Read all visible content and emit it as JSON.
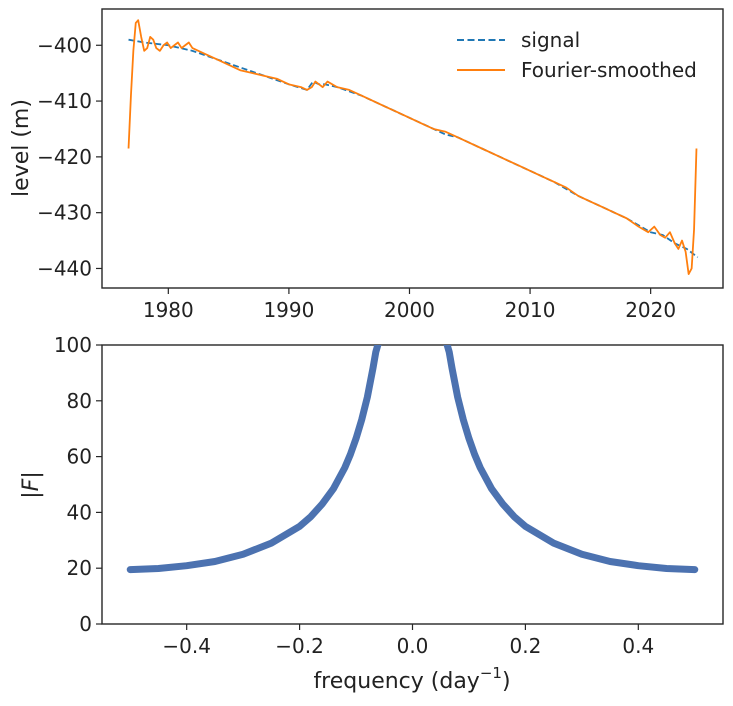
{
  "chart_data": [
    {
      "type": "line",
      "xlabel": "",
      "ylabel": "level (m)",
      "xlim": [
        1974.5,
        2026.0
      ],
      "ylim": [
        -443.5,
        -393.5
      ],
      "xticks": [
        1980,
        1990,
        2000,
        2010,
        2020
      ],
      "xtick_labels": [
        "1980",
        "1990",
        "2000",
        "2010",
        "2020"
      ],
      "yticks": [
        -400,
        -410,
        -420,
        -430,
        -440
      ],
      "ytick_labels": [
        "−400",
        "−410",
        "−420",
        "−430",
        "−440"
      ],
      "legend": "top-right",
      "grid": false,
      "series": [
        {
          "name": "signal",
          "style": "dashed",
          "color": "#1f77b4",
          "x": [
            1976.7,
            1978.0,
            1980.0,
            1982.0,
            1984.0,
            1986.0,
            1988.0,
            1990.0,
            1991.5,
            1992.0,
            1992.5,
            1993.0,
            1994.0,
            1996.0,
            1998.0,
            2000.0,
            2002.0,
            2003.0,
            2004.0,
            2006.0,
            2008.0,
            2010.0,
            2012.0,
            2014.0,
            2016.0,
            2018.0,
            2020.0,
            2021.0,
            2022.0,
            2023.0,
            2023.9
          ],
          "y": [
            -399.0,
            -399.5,
            -400.0,
            -401.0,
            -402.5,
            -404.0,
            -405.5,
            -407.0,
            -408.0,
            -406.5,
            -407.0,
            -407.0,
            -407.5,
            -409.0,
            -411.0,
            -413.0,
            -415.0,
            -416.0,
            -416.5,
            -418.5,
            -420.5,
            -422.5,
            -424.5,
            -427.0,
            -429.0,
            -431.0,
            -433.5,
            -434.0,
            -435.5,
            -436.5,
            -438.0
          ]
        },
        {
          "name": "Fourier-smoothed",
          "style": "solid",
          "color": "#ff7f0e",
          "x": [
            1976.7,
            1976.9,
            1977.1,
            1977.3,
            1977.5,
            1977.75,
            1978.0,
            1978.25,
            1978.5,
            1978.75,
            1979.0,
            1979.3,
            1979.6,
            1979.9,
            1980.2,
            1980.5,
            1980.8,
            1981.1,
            1981.4,
            1981.7,
            1982.0,
            1983.0,
            1984.0,
            1985.0,
            1986.0,
            1987.0,
            1988.0,
            1989.0,
            1990.0,
            1991.0,
            1991.5,
            1991.9,
            1992.2,
            1992.5,
            1992.8,
            1993.2,
            1994.0,
            1995.0,
            1996.0,
            1997.0,
            1998.0,
            1999.0,
            2000.0,
            2001.0,
            2002.0,
            2003.0,
            2004.0,
            2005.0,
            2006.0,
            2007.0,
            2008.0,
            2009.0,
            2010.0,
            2011.0,
            2012.0,
            2013.0,
            2014.0,
            2015.0,
            2016.0,
            2017.0,
            2018.0,
            2019.0,
            2019.8,
            2020.3,
            2020.8,
            2021.2,
            2021.6,
            2022.0,
            2022.3,
            2022.6,
            2022.9,
            2023.15,
            2023.4,
            2023.6,
            2023.8
          ],
          "y": [
            -418.5,
            -409.0,
            -401.0,
            -396.0,
            -395.5,
            -398.5,
            -401.0,
            -400.5,
            -398.5,
            -399.0,
            -400.5,
            -401.0,
            -400.0,
            -399.5,
            -400.5,
            -400.0,
            -399.5,
            -400.5,
            -400.0,
            -399.5,
            -400.5,
            -401.5,
            -402.5,
            -403.5,
            -404.5,
            -405.0,
            -405.5,
            -406.0,
            -407.0,
            -407.5,
            -408.0,
            -407.5,
            -406.5,
            -407.0,
            -407.5,
            -406.5,
            -407.5,
            -408.0,
            -409.0,
            -410.0,
            -411.0,
            -412.0,
            -413.0,
            -414.0,
            -415.0,
            -415.5,
            -416.5,
            -417.5,
            -418.5,
            -419.5,
            -420.5,
            -421.5,
            -422.5,
            -423.5,
            -424.5,
            -425.5,
            -427.0,
            -428.0,
            -429.0,
            -430.0,
            -431.0,
            -432.5,
            -433.5,
            -432.5,
            -434.0,
            -434.5,
            -433.5,
            -435.5,
            -436.5,
            -435.0,
            -437.0,
            -441.0,
            -440.0,
            -433.0,
            -418.5
          ]
        }
      ]
    },
    {
      "type": "scatter",
      "xlabel": "frequency (day⁻¹)",
      "xlabel_base": "frequency (day",
      "xlabel_sup": "−1",
      "xlabel_close": ")",
      "ylabel": "|F|",
      "xlim": [
        -0.55,
        0.55
      ],
      "ylim": [
        0,
        100
      ],
      "xticks": [
        -0.4,
        -0.2,
        0.0,
        0.2,
        0.4
      ],
      "xtick_labels": [
        "−0.4",
        "−0.2",
        "0.0",
        "0.2",
        "0.4"
      ],
      "yticks": [
        0,
        20,
        40,
        60,
        80,
        100
      ],
      "ytick_labels": [
        "0",
        "20",
        "40",
        "60",
        "80",
        "100"
      ],
      "grid": false,
      "series": [
        {
          "name": "",
          "color": "#4c72b0",
          "x": [
            -0.5,
            -0.45,
            -0.4,
            -0.35,
            -0.3,
            -0.25,
            -0.2,
            -0.18,
            -0.16,
            -0.14,
            -0.12,
            -0.11,
            -0.1,
            -0.09,
            -0.08,
            -0.07,
            -0.065,
            -0.06
          ],
          "y": [
            19.5,
            19.9,
            20.9,
            22.4,
            25.0,
            29.0,
            35.0,
            38.5,
            43.0,
            48.5,
            56.0,
            60.8,
            66.5,
            73.2,
            81.3,
            91.7,
            97.5,
            101.0
          ]
        }
      ]
    }
  ]
}
